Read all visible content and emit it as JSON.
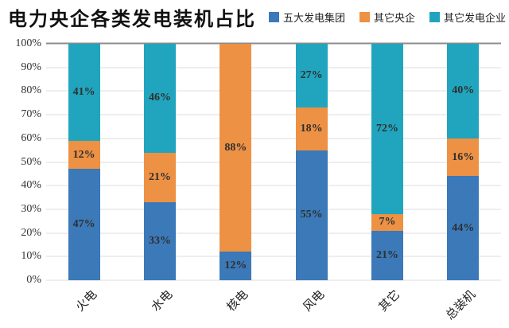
{
  "title": "电力央企各类发电装机占比",
  "legend": [
    {
      "label": "五大发电集团",
      "color": "#3b79b8"
    },
    {
      "label": "其它央企",
      "color": "#ed9144"
    },
    {
      "label": "其它发电企业",
      "color": "#21a5be"
    }
  ],
  "colors": {
    "series_blue": "#3b79b8",
    "series_orange": "#ed9144",
    "series_teal": "#21a5be",
    "gridline": "#dddddd",
    "gridline_top": "#8c8c8c",
    "label_text": "#2f2f2f"
  },
  "chart_data": {
    "type": "bar",
    "stacked": true,
    "title": "电力央企各类发电装机占比",
    "categories": [
      "火电",
      "水电",
      "核电",
      "风电",
      "其它",
      "总装机"
    ],
    "series": [
      {
        "name": "五大发电集团",
        "color": "#3b79b8",
        "values": [
          47,
          33,
          12,
          55,
          21,
          44
        ]
      },
      {
        "name": "其它央企",
        "color": "#ed9144",
        "values": [
          12,
          21,
          88,
          18,
          7,
          16
        ]
      },
      {
        "name": "其它发电企业",
        "color": "#21a5be",
        "values": [
          41,
          46,
          0,
          27,
          72,
          40
        ]
      }
    ],
    "y_ticks": [
      "0%",
      "10%",
      "20%",
      "30%",
      "40%",
      "50%",
      "60%",
      "70%",
      "80%",
      "90%",
      "100%"
    ],
    "ylim": [
      0,
      100
    ],
    "unit": "%",
    "grid": true,
    "data_labels": true,
    "legend_position": "top-right",
    "xlabel": "",
    "ylabel": ""
  }
}
